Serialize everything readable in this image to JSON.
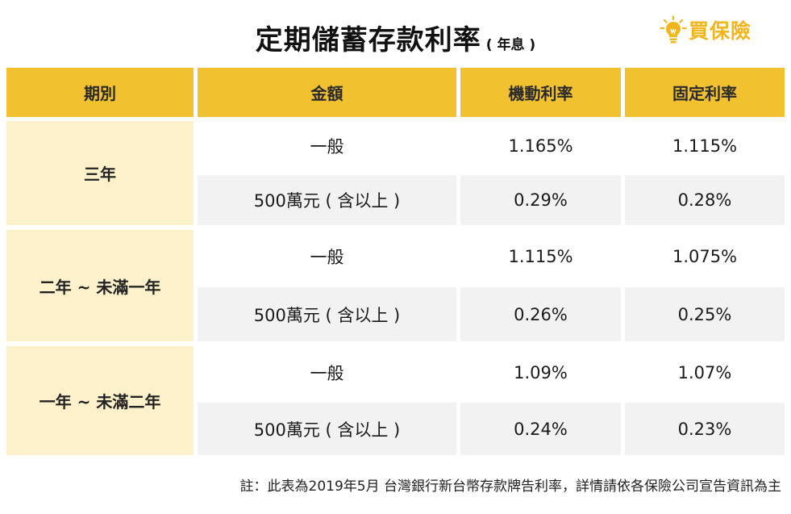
{
  "title": {
    "main": "定期儲蓄存款利率",
    "sub": "( 年息 )"
  },
  "logo": {
    "text": "買保險",
    "icon": "lightbulb-icon",
    "color": "#f2b51b"
  },
  "colors": {
    "header_bg": "#f2c130",
    "label_bg": "#fdf1cc",
    "alt_row_bg": "#f2f2f2"
  },
  "table": {
    "headers": {
      "period": "期別",
      "amount": "金額",
      "floating": "機動利率",
      "fixed": "固定利率"
    },
    "groups": [
      {
        "period": "三年",
        "rows": [
          {
            "amount": "一般",
            "floating": "1.165%",
            "fixed": "1.115%"
          },
          {
            "amount": "500萬元 ( 含以上 )",
            "floating": "0.29%",
            "fixed": "0.28%"
          }
        ]
      },
      {
        "period": "二年 ~ 未滿一年",
        "rows": [
          {
            "amount": "一般",
            "floating": "1.115%",
            "fixed": "1.075%"
          },
          {
            "amount": "500萬元 ( 含以上 )",
            "floating": "0.26%",
            "fixed": "0.25%"
          }
        ]
      },
      {
        "period": "一年 ~ 未滿二年",
        "rows": [
          {
            "amount": "一般",
            "floating": "1.09%",
            "fixed": "1.07%"
          },
          {
            "amount": "500萬元 ( 含以上 )",
            "floating": "0.24%",
            "fixed": "0.23%"
          }
        ]
      }
    ]
  },
  "footnote": "註：此表為2019年5月 台灣銀行新台幣存款牌告利率，詳情請依各保險公司宣告資訊為主"
}
